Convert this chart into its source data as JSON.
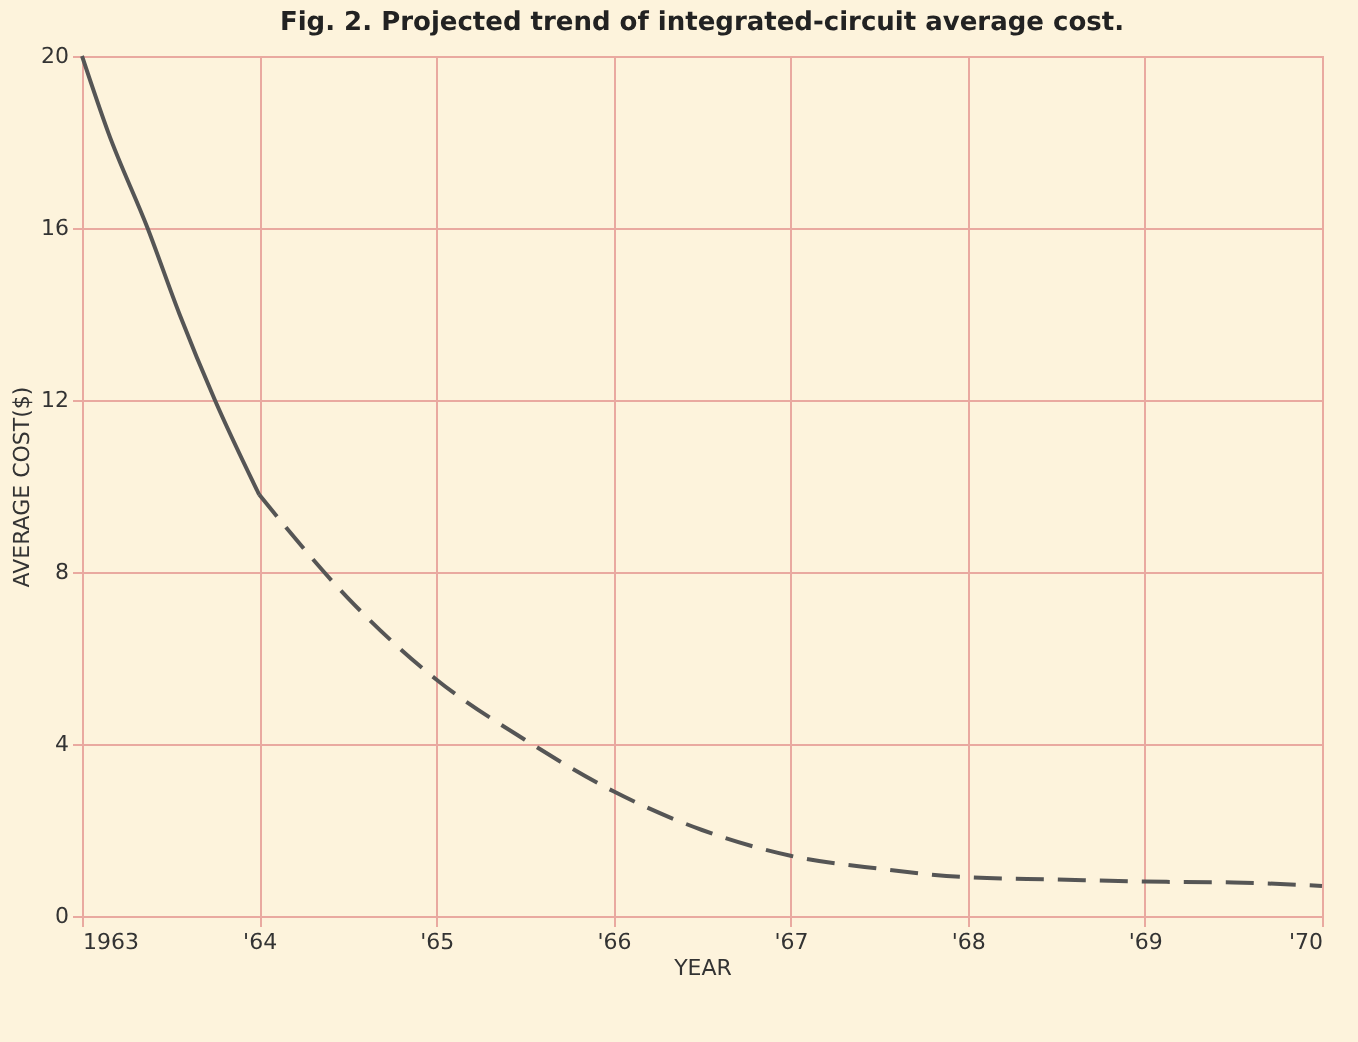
{
  "chart_data": {
    "type": "line",
    "title": "Fig. 2. Projected trend of integrated-circuit average cost.",
    "xlabel": "YEAR",
    "ylabel": "AVERAGE COST($)",
    "series": [
      {
        "color": "#555555",
        "line_style": "solid",
        "x": [
          1963,
          1963.15,
          1963.37,
          1963.55,
          1963.75,
          1964
        ],
        "values": [
          20,
          18.2,
          16,
          14,
          12,
          9.8
        ]
      },
      {
        "color": "#555555",
        "line_style": "dashed",
        "x": [
          1964,
          1964.5,
          1965,
          1965.5,
          1966,
          1966.5,
          1967,
          1967.5,
          1968,
          1968.5,
          1969,
          1969.5,
          1970
        ],
        "values": [
          9.8,
          7.4,
          5.5,
          4.1,
          2.9,
          2,
          1.4,
          1.1,
          0.9,
          0.85,
          0.8,
          0.78,
          0.7
        ]
      }
    ],
    "xlim": [
      1963,
      1970
    ],
    "xticks": [
      1963,
      {
        "value": 1964,
        "label": "'64"
      },
      {
        "value": 1965,
        "label": "'65"
      },
      {
        "value": 1966,
        "label": "'66"
      },
      {
        "value": 1967,
        "label": "'67"
      },
      {
        "value": 1968,
        "label": "'68"
      },
      {
        "value": 1969,
        "label": "'69"
      },
      {
        "value": 1970,
        "label": "'70"
      }
    ],
    "ylim": [
      0,
      20
    ],
    "yticks": [
      0,
      4,
      8,
      12,
      16,
      20
    ],
    "grid": true,
    "marker": "none"
  }
}
